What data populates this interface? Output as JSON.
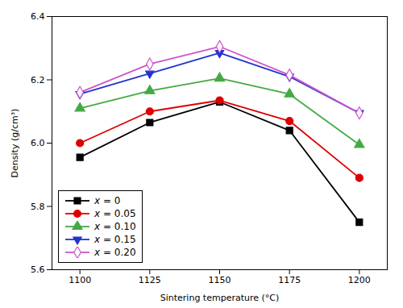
{
  "chart_data": {
    "type": "line",
    "x": [
      1100,
      1125,
      1150,
      1175,
      1200
    ],
    "series": [
      {
        "name": "x = 0",
        "color": "#000000",
        "marker": "square",
        "values": [
          5.955,
          6.065,
          6.13,
          6.04,
          5.75
        ]
      },
      {
        "name": "x = 0.05",
        "color": "#dd0000",
        "marker": "circle",
        "values": [
          6.0,
          6.1,
          6.135,
          6.07,
          5.89
        ]
      },
      {
        "name": "x = 0.10",
        "color": "#44aa44",
        "marker": "triangle",
        "values": [
          6.11,
          6.165,
          6.205,
          6.155,
          5.995
        ]
      },
      {
        "name": "x = 0.15",
        "color": "#2233cc",
        "marker": "triangle-down",
        "values": [
          6.155,
          6.22,
          6.285,
          6.21,
          6.095
        ]
      },
      {
        "name": "x = 0.20",
        "color": "#cc55cc",
        "marker": "diamond-open",
        "values": [
          6.16,
          6.25,
          6.305,
          6.215,
          6.095
        ]
      }
    ],
    "xlabel": "Sintering temperature (°C)",
    "ylabel": "Density (g/cm³)",
    "xlim": [
      1090,
      1210
    ],
    "ylim": [
      5.6,
      6.4
    ],
    "xticks": [
      1100,
      1125,
      1150,
      1175,
      1200
    ],
    "yticks": [
      5.6,
      5.8,
      {
        "value": 6.0,
        "label": "6.0"
      },
      6.2,
      6.4
    ],
    "legend": "lower left",
    "grid": false
  }
}
